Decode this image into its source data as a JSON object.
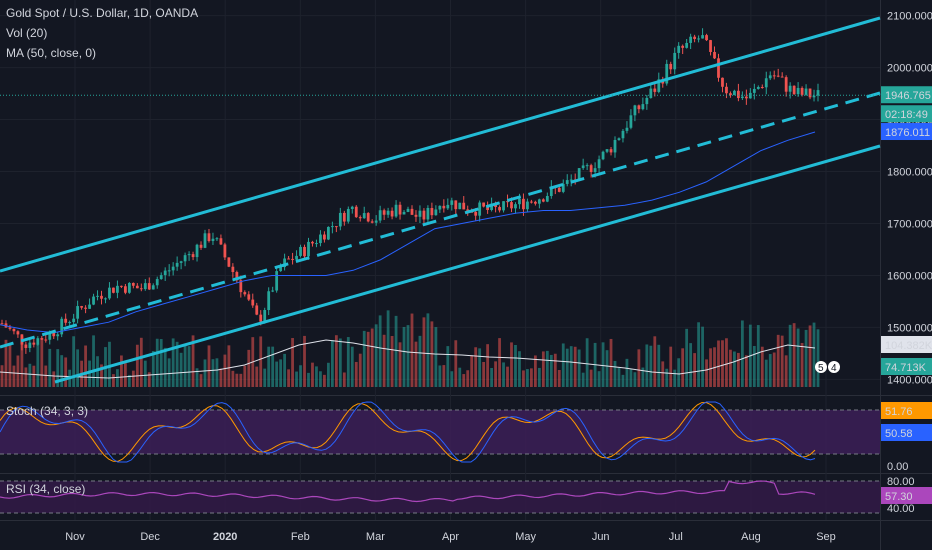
{
  "legend": {
    "title": "Gold Spot / U.S. Dollar, 1D, OANDA",
    "vol": "Vol (20)",
    "ma": "MA (50, close, 0)"
  },
  "panes": {
    "stoch_label": "Stoch (34, 3, 3)",
    "rsi_label": "RSI (34, close)"
  },
  "price_axis": {
    "ticks": [
      "2100.000",
      "2000.000",
      "1900.000",
      "1800.000",
      "1700.000",
      "1600.000",
      "1500.000",
      "1400.000"
    ],
    "badges": {
      "current_price": "1946.765",
      "countdown": "02:18:49",
      "ma_value": "1876.011",
      "vol_ma": "104.382K",
      "vol": "74.713K"
    }
  },
  "stoch_axis": {
    "ticks": [
      "0.00"
    ],
    "badges": {
      "k": "51.76",
      "d": "50.58"
    }
  },
  "rsi_axis": {
    "ticks": [
      "80.00",
      "40.00"
    ],
    "badge": "57.30"
  },
  "time_axis": {
    "labels": [
      "Nov",
      "Dec",
      "2020",
      "Feb",
      "Mar",
      "Apr",
      "May",
      "Jun",
      "Jul",
      "Aug",
      "Sep"
    ]
  },
  "events": {
    "count_a": "5",
    "count_b": "4"
  },
  "colors": {
    "bg": "#131722",
    "up": "#26a69a",
    "down": "#ef5350",
    "channel": "#22bcd6",
    "ma": "#2962ff",
    "vol_ma": "#e0e3eb",
    "stoch_k": "#2962ff",
    "stoch_d": "#ff9800",
    "stoch_band": "#3c1f57",
    "rsi": "#ab47bc",
    "rsi_band": "#311a45"
  },
  "chart_data": {
    "type": "candlestick",
    "symbol": "Gold Spot / U.S. Dollar",
    "interval": "1D",
    "ylim": [
      1370,
      2130
    ],
    "x": [
      "Nov",
      "Dec",
      "2020",
      "Feb",
      "Mar",
      "Apr",
      "May",
      "Jun",
      "Jul",
      "Aug",
      "Sep"
    ],
    "close_trajectory": [
      1508,
      1470,
      1485,
      1520,
      1560,
      1580,
      1575,
      1605,
      1640,
      1680,
      1600,
      1510,
      1620,
      1650,
      1690,
      1730,
      1710,
      1730,
      1710,
      1745,
      1730,
      1725,
      1735,
      1750,
      1770,
      1800,
      1840,
      1905,
      1960,
      2030,
      2060,
      1960,
      1940,
      1990,
      1950,
      1946
    ],
    "ma50": [
      1505,
      1495,
      1490,
      1500,
      1510,
      1530,
      1545,
      1560,
      1575,
      1590,
      1600,
      1600,
      1600,
      1610,
      1630,
      1660,
      1690,
      1700,
      1710,
      1720,
      1725,
      1725,
      1730,
      1735,
      1745,
      1760,
      1780,
      1810,
      1840,
      1860,
      1876
    ],
    "volume_ma": "104.382K",
    "volume_last": "74.713K",
    "stochastic": {
      "k": 51.76,
      "d": 50.58,
      "upper": 80,
      "lower": 20
    },
    "rsi": {
      "value": 57.3,
      "upper": 80,
      "lower": 40
    },
    "annotations": [
      {
        "type": "channel_upper",
        "line": "solid"
      },
      {
        "type": "channel_lower",
        "line": "solid"
      },
      {
        "type": "channel_mid",
        "line": "dashed"
      },
      {
        "type": "price_line",
        "value": 1946.765
      }
    ]
  }
}
